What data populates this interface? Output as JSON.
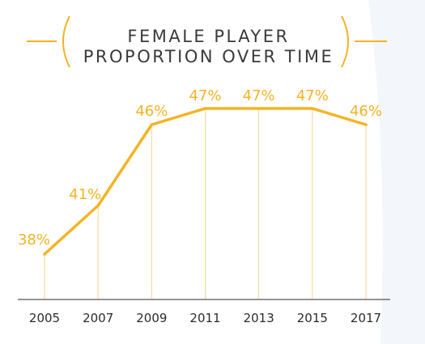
{
  "title_lines": [
    "FEMALE PLAYER",
    "PROPORTION OVER TIME"
  ],
  "colors": {
    "accent": "#F5B323",
    "guide": "#F7D58A",
    "axis": "#555555",
    "text": "#2b2b2b",
    "background_curve": "#F3F6FA"
  },
  "chart_data": {
    "type": "line",
    "title": "FEMALE PLAYER PROPORTION OVER TIME",
    "x": [
      "2005",
      "2007",
      "2009",
      "2011",
      "2013",
      "2015",
      "2017"
    ],
    "values": [
      38,
      41,
      46,
      47,
      47,
      47,
      46
    ],
    "data_labels": [
      "38%",
      "41%",
      "46%",
      "47%",
      "47%",
      "47%",
      "46%"
    ],
    "xlabel": "",
    "ylabel": "",
    "grid": false,
    "legend": "none"
  }
}
